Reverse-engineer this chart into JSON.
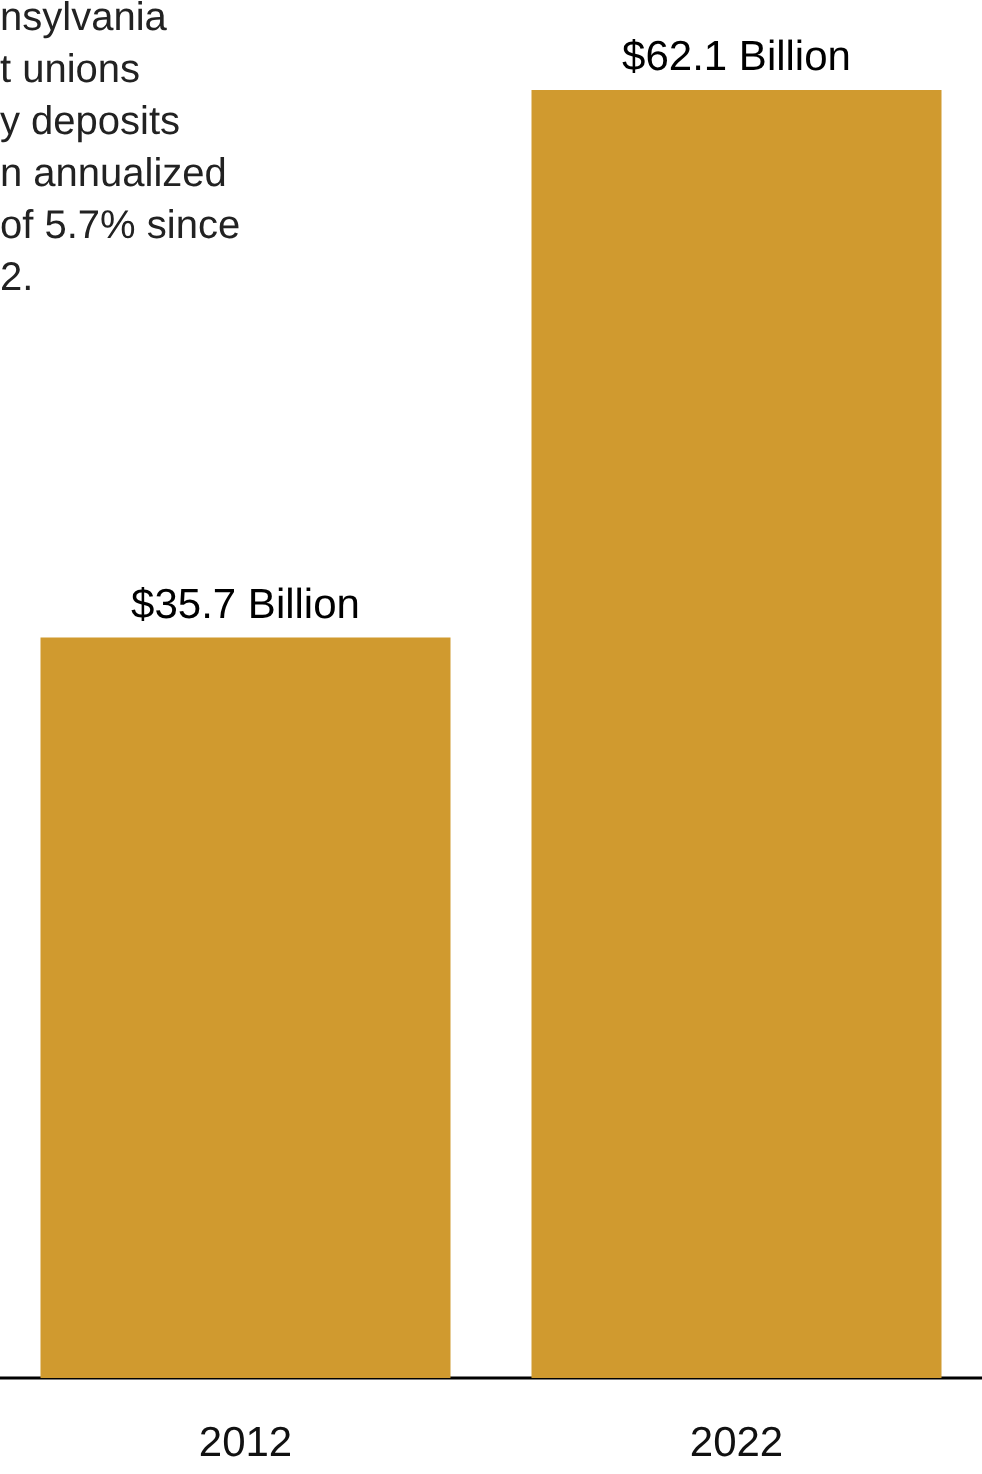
{
  "chart_data": {
    "type": "bar",
    "categories": [
      "2012",
      "2022"
    ],
    "values": [
      35.7,
      62.1
    ],
    "color": "#d09a2f",
    "value_labels": [
      "$35.7 Billion",
      "$62.1 Billion"
    ],
    "annotations": [
      "nsylvania\nt unions\ny deposits\nn annualized\nof 5.7% since\n2."
    ]
  }
}
